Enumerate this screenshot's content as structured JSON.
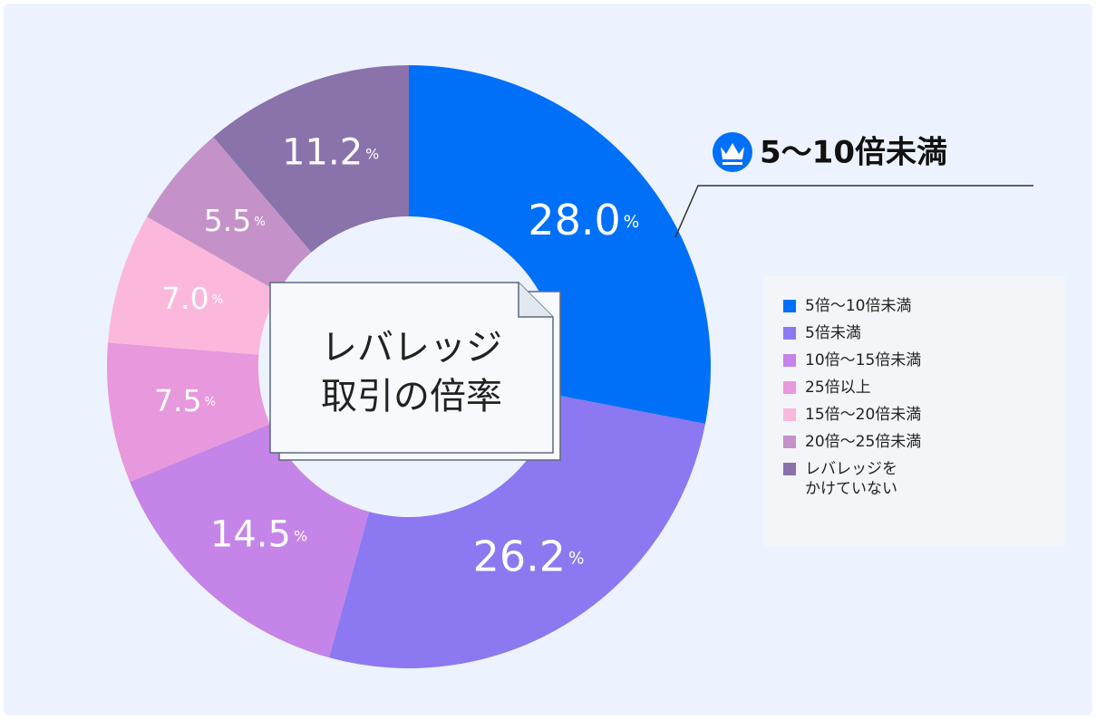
{
  "chart_data": {
    "type": "donut",
    "categories": [
      "5倍～10倍未満",
      "5倍未満",
      "10倍～15倍未満",
      "25倍以上",
      "15倍～20倍未満",
      "20倍～25倍未満",
      "レバレッジを\nかけていない"
    ],
    "values": [
      28.0,
      26.2,
      14.5,
      7.5,
      7.0,
      5.5,
      11.2
    ],
    "value_labels": [
      "28.0",
      "26.2",
      "14.5",
      "7.5",
      "7.0",
      "5.5",
      "11.2"
    ],
    "unit": "%",
    "colors": [
      "#0070f8",
      "#8c78f0",
      "#c484e8",
      "#e898dc",
      "#fbb8dc",
      "#c492c8",
      "#8a72aa"
    ],
    "center_label": [
      "レバレッジ",
      "取引の倍率"
    ],
    "annotation": "5〜10倍未満",
    "legend": "right"
  }
}
